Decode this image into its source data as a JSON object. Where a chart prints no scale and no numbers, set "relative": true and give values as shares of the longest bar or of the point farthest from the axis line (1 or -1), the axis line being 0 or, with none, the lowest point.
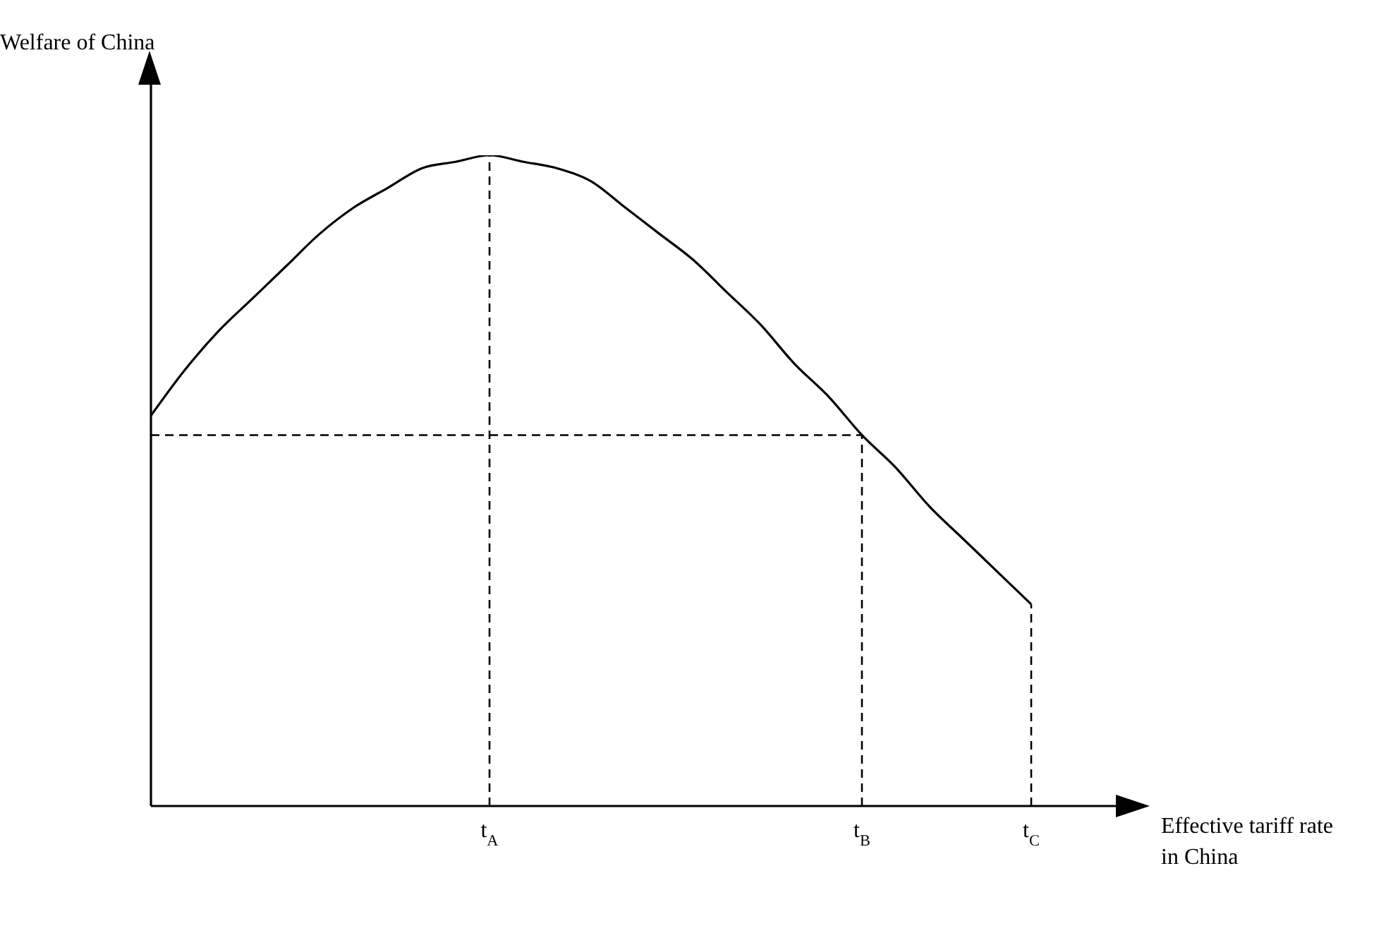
{
  "chart_data": {
    "type": "line",
    "relative": true,
    "xlabel": "Effective tariff rate in China",
    "ylabel": "Welfare of China",
    "categories": [
      null,
      null,
      null,
      null,
      null,
      null,
      null,
      null,
      null,
      null,
      "t$_{A}$",
      null,
      null,
      null,
      null,
      null,
      null,
      null,
      null,
      null,
      null,
      "t$_{B}$",
      null,
      null,
      null,
      null,
      "t$_{C}$"
    ],
    "series": [
      {
        "color": "#000000",
        "values": [
          0.6,
          0.67,
          0.73,
          0.78,
          0.83,
          0.88,
          0.92,
          0.95,
          0.98,
          0.99,
          1,
          0.99,
          0.98,
          0.96,
          0.92,
          0.88,
          0.84,
          0.79,
          0.74,
          0.68,
          0.63,
          0.57,
          0.52,
          0.46,
          0.41,
          0.36,
          0.31
        ]
      }
    ],
    "ref_lines": [
      {
        "axis": "x",
        "value": "t$_{A}$",
        "color": "#000000",
        "line_style": "dashed"
      },
      {
        "axis": "x",
        "value": "t$_{B}$",
        "color": "#000000",
        "line_style": "dashed"
      },
      {
        "axis": "x",
        "value": "t$_{C}$",
        "color": "#000000",
        "line_style": "dashed"
      },
      {
        "axis": "y",
        "value": 0.57,
        "color": "#000000",
        "line_style": "dashed"
      }
    ],
    "grid": false,
    "marker": "none",
    "line_style": "solid"
  }
}
